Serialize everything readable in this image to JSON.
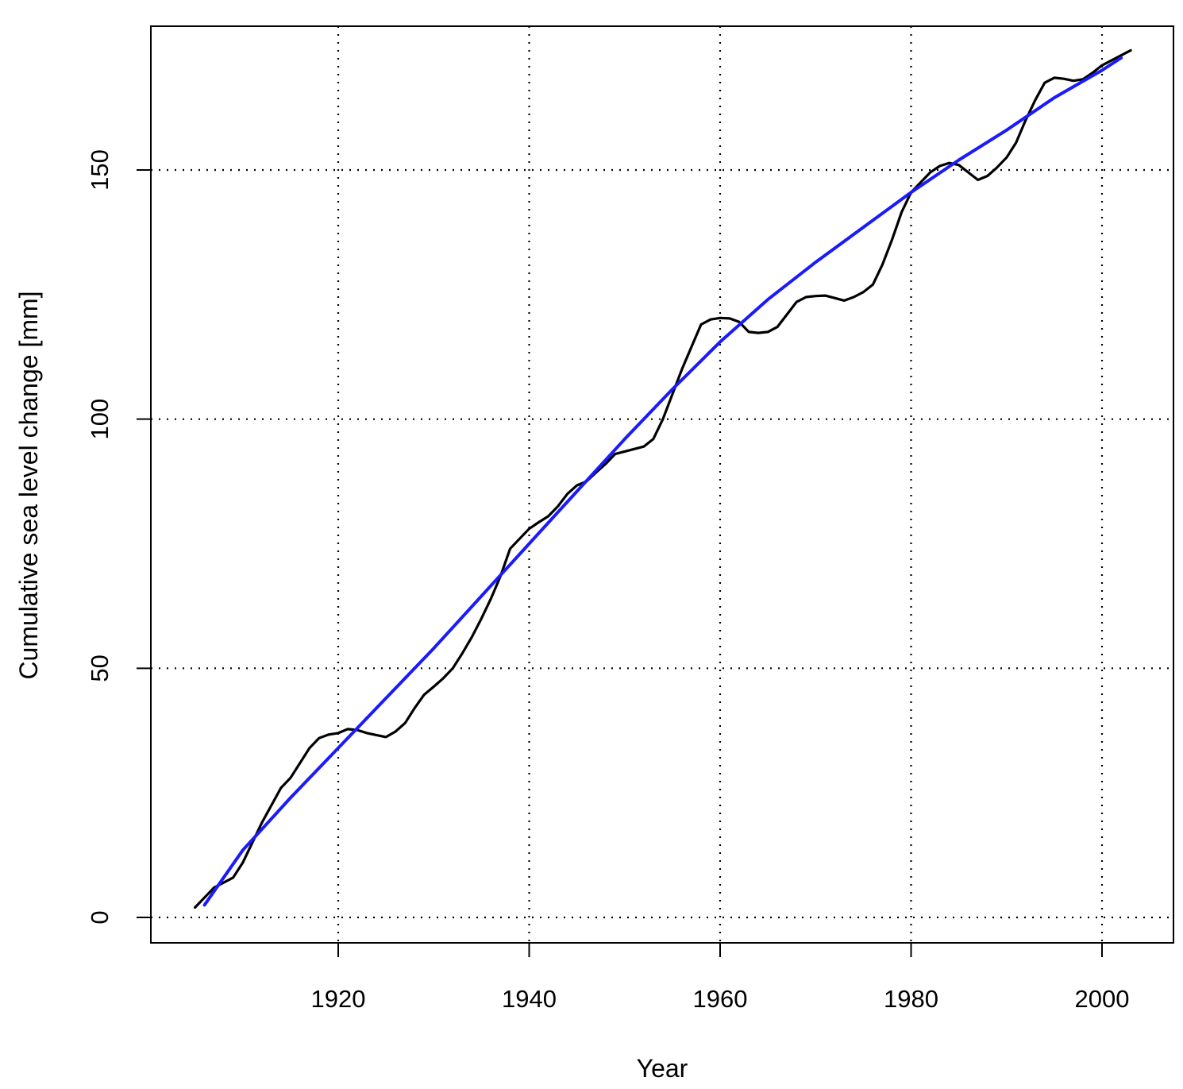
{
  "chart_data": {
    "type": "line",
    "title": "",
    "xlabel": "Year",
    "ylabel": "Cumulative sea level change [mm]",
    "xlim": [
      1900,
      2008
    ],
    "ylim": [
      -5,
      180
    ],
    "x_ticks": [
      1920,
      1940,
      1960,
      1980,
      2000
    ],
    "y_ticks": [
      0,
      50,
      100,
      150
    ],
    "grid": true,
    "legend": "none",
    "series": [
      {
        "color": "#000000",
        "style": "solid",
        "points": [
          [
            1905,
            2
          ],
          [
            1907,
            6
          ],
          [
            1909,
            8
          ],
          [
            1910,
            11
          ],
          [
            1912,
            19
          ],
          [
            1914,
            26
          ],
          [
            1915,
            28
          ],
          [
            1916,
            31
          ],
          [
            1917,
            34
          ],
          [
            1918,
            36
          ],
          [
            1919,
            36.7
          ],
          [
            1920,
            37
          ],
          [
            1921,
            37.8
          ],
          [
            1922,
            37.6
          ],
          [
            1923,
            37
          ],
          [
            1924,
            36.6
          ],
          [
            1925,
            36.2
          ],
          [
            1926,
            37.3
          ],
          [
            1927,
            39
          ],
          [
            1928,
            42
          ],
          [
            1929,
            44.7
          ],
          [
            1930,
            46.3
          ],
          [
            1931,
            48
          ],
          [
            1932,
            50
          ],
          [
            1933,
            53
          ],
          [
            1934,
            56.3
          ],
          [
            1935,
            60
          ],
          [
            1936,
            64
          ],
          [
            1937,
            68.5
          ],
          [
            1938,
            74
          ],
          [
            1939,
            76
          ],
          [
            1940,
            78
          ],
          [
            1941,
            79.3
          ],
          [
            1942,
            80.5
          ],
          [
            1943,
            82.5
          ],
          [
            1944,
            85
          ],
          [
            1945,
            86.7
          ],
          [
            1946,
            87.5
          ],
          [
            1947,
            89.3
          ],
          [
            1948,
            91
          ],
          [
            1949,
            93
          ],
          [
            1950,
            93.5
          ],
          [
            1951,
            94
          ],
          [
            1952,
            94.5
          ],
          [
            1953,
            96
          ],
          [
            1954,
            100
          ],
          [
            1955,
            105
          ],
          [
            1956,
            110
          ],
          [
            1957,
            114.5
          ],
          [
            1958,
            119
          ],
          [
            1959,
            120
          ],
          [
            1960,
            120.3
          ],
          [
            1961,
            120.2
          ],
          [
            1962,
            119.5
          ],
          [
            1963,
            117.5
          ],
          [
            1964,
            117.3
          ],
          [
            1965,
            117.5
          ],
          [
            1966,
            118.5
          ],
          [
            1967,
            121
          ],
          [
            1968,
            123.5
          ],
          [
            1969,
            124.5
          ],
          [
            1970,
            124.7
          ],
          [
            1971,
            124.8
          ],
          [
            1972,
            124.3
          ],
          [
            1973,
            123.8
          ],
          [
            1974,
            124.5
          ],
          [
            1975,
            125.5
          ],
          [
            1976,
            127
          ],
          [
            1977,
            131
          ],
          [
            1978,
            136
          ],
          [
            1979,
            141.5
          ],
          [
            1980,
            145.5
          ],
          [
            1981,
            147.5
          ],
          [
            1982,
            149.5
          ],
          [
            1983,
            150.8
          ],
          [
            1984,
            151.4
          ],
          [
            1985,
            151
          ],
          [
            1986,
            149.5
          ],
          [
            1987,
            148
          ],
          [
            1988,
            148.8
          ],
          [
            1989,
            150.5
          ],
          [
            1990,
            152.5
          ],
          [
            1991,
            155.5
          ],
          [
            1992,
            160
          ],
          [
            1993,
            164
          ],
          [
            1994,
            167.5
          ],
          [
            1995,
            168.5
          ],
          [
            1996,
            168.3
          ],
          [
            1997,
            167.9
          ],
          [
            1998,
            168.2
          ],
          [
            1999,
            169.5
          ],
          [
            2000,
            171
          ],
          [
            2001,
            172
          ],
          [
            2002,
            173
          ],
          [
            2003,
            174
          ]
        ]
      },
      {
        "color": "#1a1aff",
        "style": "solid",
        "points": [
          [
            1906,
            2.5
          ],
          [
            1910,
            13.5
          ],
          [
            1915,
            24
          ],
          [
            1920,
            34
          ],
          [
            1925,
            44
          ],
          [
            1930,
            54
          ],
          [
            1935,
            64.5
          ],
          [
            1940,
            75
          ],
          [
            1945,
            85.5
          ],
          [
            1950,
            96
          ],
          [
            1955,
            106
          ],
          [
            1960,
            115.5
          ],
          [
            1965,
            124
          ],
          [
            1970,
            131.5
          ],
          [
            1975,
            138.5
          ],
          [
            1980,
            145.5
          ],
          [
            1985,
            152
          ],
          [
            1990,
            158
          ],
          [
            1995,
            164.5
          ],
          [
            2000,
            170
          ],
          [
            2002,
            172.5
          ]
        ]
      }
    ]
  }
}
